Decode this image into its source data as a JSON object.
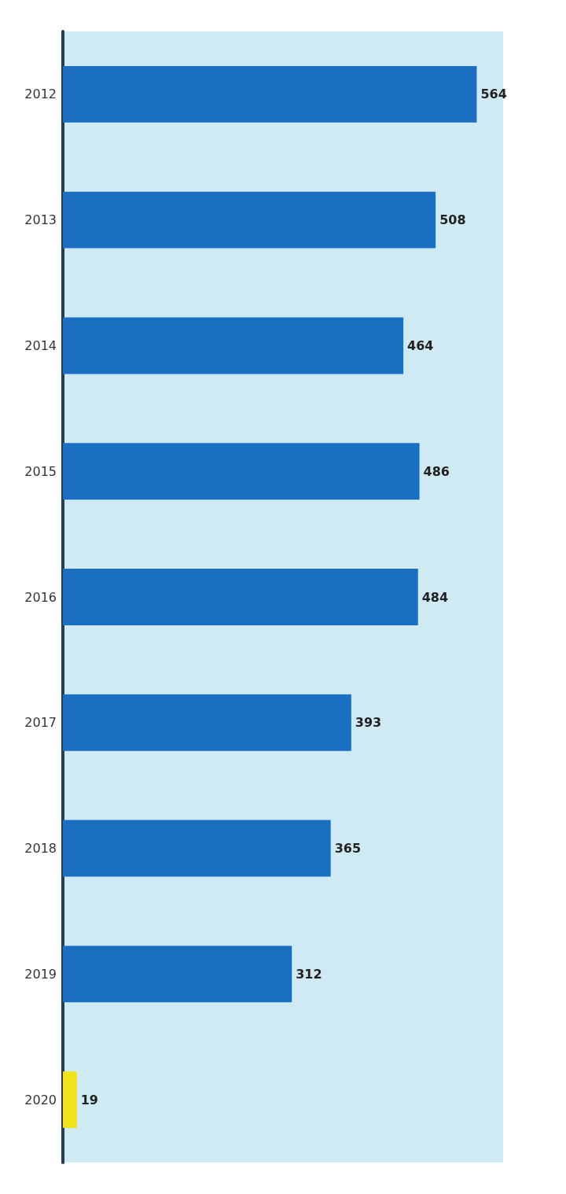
{
  "chart_data": {
    "type": "bar",
    "orientation": "horizontal",
    "categories": [
      "2012",
      "2013",
      "2014",
      "2015",
      "2016",
      "2017",
      "2018",
      "2019",
      "2020"
    ],
    "values": [
      564,
      508,
      464,
      486,
      484,
      393,
      365,
      312,
      19
    ],
    "colors": [
      "#1b6fc2",
      "#1b6fc2",
      "#1b6fc2",
      "#1b6fc2",
      "#1b6fc2",
      "#1b6fc2",
      "#1b6fc2",
      "#1b6fc2",
      "#f2e21c"
    ],
    "data_labels": true
  }
}
